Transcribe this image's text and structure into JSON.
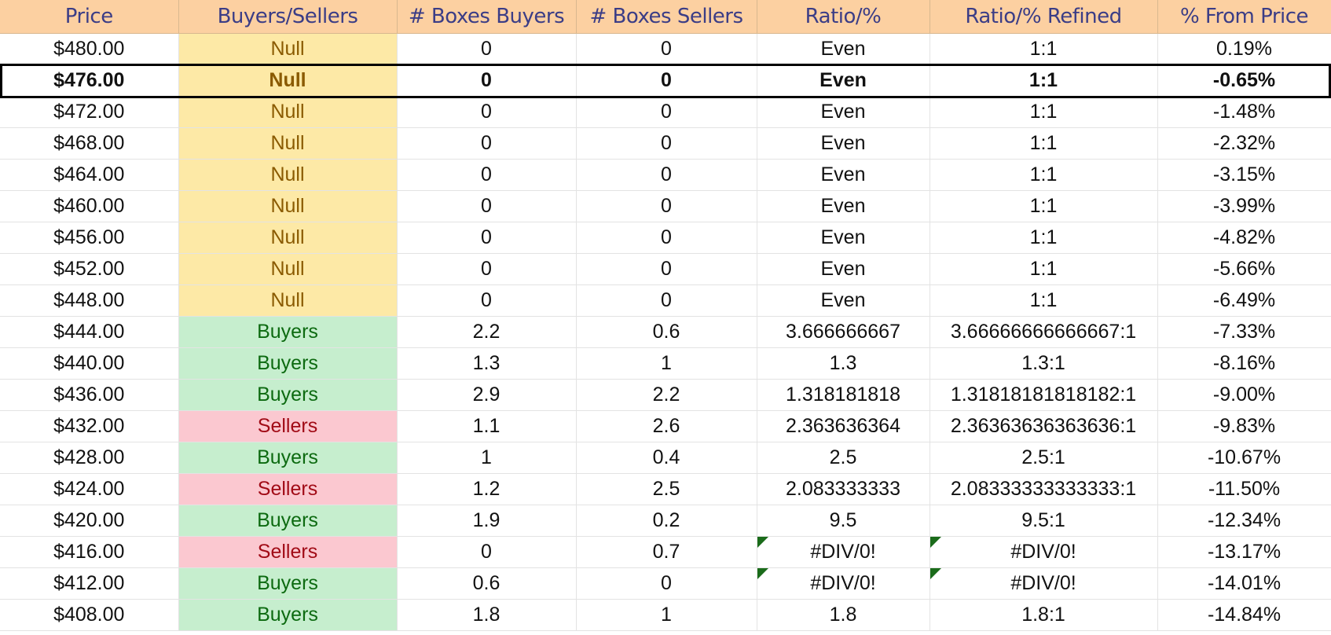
{
  "sheet": {
    "headers": [
      "Price",
      "Buyers/Sellers",
      "# Boxes Buyers",
      "# Boxes Sellers",
      "Ratio/%",
      "Ratio/% Refined",
      "% From Price"
    ],
    "colors": {
      "header_bg": "#fcd0a1",
      "header_text": "#3b3d86",
      "null_bg": "#fde9a6",
      "null_text": "#8a5a00",
      "buyers_bg": "#c6eece",
      "buyers_text": "#0c6a10",
      "sellers_bg": "#fbc8d0",
      "sellers_text": "#a10b16",
      "error_flag": "#1a6b1a"
    },
    "selected_row_index": 1,
    "rows": [
      {
        "price": "$480.00",
        "side": "Null",
        "buyers": "0",
        "sellers": "0",
        "ratio": "Even",
        "ratio_refined": "1:1",
        "from_price": "0.19%",
        "error": false
      },
      {
        "price": "$476.00",
        "side": "Null",
        "buyers": "0",
        "sellers": "0",
        "ratio": "Even",
        "ratio_refined": "1:1",
        "from_price": "-0.65%",
        "error": false
      },
      {
        "price": "$472.00",
        "side": "Null",
        "buyers": "0",
        "sellers": "0",
        "ratio": "Even",
        "ratio_refined": "1:1",
        "from_price": "-1.48%",
        "error": false
      },
      {
        "price": "$468.00",
        "side": "Null",
        "buyers": "0",
        "sellers": "0",
        "ratio": "Even",
        "ratio_refined": "1:1",
        "from_price": "-2.32%",
        "error": false
      },
      {
        "price": "$464.00",
        "side": "Null",
        "buyers": "0",
        "sellers": "0",
        "ratio": "Even",
        "ratio_refined": "1:1",
        "from_price": "-3.15%",
        "error": false
      },
      {
        "price": "$460.00",
        "side": "Null",
        "buyers": "0",
        "sellers": "0",
        "ratio": "Even",
        "ratio_refined": "1:1",
        "from_price": "-3.99%",
        "error": false
      },
      {
        "price": "$456.00",
        "side": "Null",
        "buyers": "0",
        "sellers": "0",
        "ratio": "Even",
        "ratio_refined": "1:1",
        "from_price": "-4.82%",
        "error": false
      },
      {
        "price": "$452.00",
        "side": "Null",
        "buyers": "0",
        "sellers": "0",
        "ratio": "Even",
        "ratio_refined": "1:1",
        "from_price": "-5.66%",
        "error": false
      },
      {
        "price": "$448.00",
        "side": "Null",
        "buyers": "0",
        "sellers": "0",
        "ratio": "Even",
        "ratio_refined": "1:1",
        "from_price": "-6.49%",
        "error": false
      },
      {
        "price": "$444.00",
        "side": "Buyers",
        "buyers": "2.2",
        "sellers": "0.6",
        "ratio": "3.666666667",
        "ratio_refined": "3.66666666666667:1",
        "from_price": "-7.33%",
        "error": false
      },
      {
        "price": "$440.00",
        "side": "Buyers",
        "buyers": "1.3",
        "sellers": "1",
        "ratio": "1.3",
        "ratio_refined": "1.3:1",
        "from_price": "-8.16%",
        "error": false
      },
      {
        "price": "$436.00",
        "side": "Buyers",
        "buyers": "2.9",
        "sellers": "2.2",
        "ratio": "1.318181818",
        "ratio_refined": "1.31818181818182:1",
        "from_price": "-9.00%",
        "error": false
      },
      {
        "price": "$432.00",
        "side": "Sellers",
        "buyers": "1.1",
        "sellers": "2.6",
        "ratio": "2.363636364",
        "ratio_refined": "2.36363636363636:1",
        "from_price": "-9.83%",
        "error": false
      },
      {
        "price": "$428.00",
        "side": "Buyers",
        "buyers": "1",
        "sellers": "0.4",
        "ratio": "2.5",
        "ratio_refined": "2.5:1",
        "from_price": "-10.67%",
        "error": false
      },
      {
        "price": "$424.00",
        "side": "Sellers",
        "buyers": "1.2",
        "sellers": "2.5",
        "ratio": "2.083333333",
        "ratio_refined": "2.08333333333333:1",
        "from_price": "-11.50%",
        "error": false
      },
      {
        "price": "$420.00",
        "side": "Buyers",
        "buyers": "1.9",
        "sellers": "0.2",
        "ratio": "9.5",
        "ratio_refined": "9.5:1",
        "from_price": "-12.34%",
        "error": false
      },
      {
        "price": "$416.00",
        "side": "Sellers",
        "buyers": "0",
        "sellers": "0.7",
        "ratio": "#DIV/0!",
        "ratio_refined": "#DIV/0!",
        "from_price": "-13.17%",
        "error": true
      },
      {
        "price": "$412.00",
        "side": "Buyers",
        "buyers": "0.6",
        "sellers": "0",
        "ratio": "#DIV/0!",
        "ratio_refined": "#DIV/0!",
        "from_price": "-14.01%",
        "error": true
      },
      {
        "price": "$408.00",
        "side": "Buyers",
        "buyers": "1.8",
        "sellers": "1",
        "ratio": "1.8",
        "ratio_refined": "1.8:1",
        "from_price": "-14.84%",
        "error": false
      }
    ]
  }
}
